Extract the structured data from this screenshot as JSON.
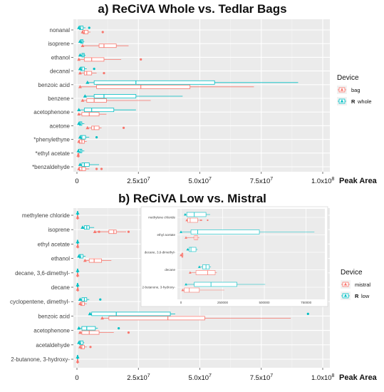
{
  "chart_data": [
    {
      "type": "box",
      "title": "a) ReCiVA Whole vs. Tedlar Bags",
      "xlabel": "Peak Area",
      "xlim": [
        0,
        100000000
      ],
      "xticks": [
        0,
        25000000,
        50000000,
        75000000,
        100000000
      ],
      "xtick_labels": [
        "0",
        "2.5x10",
        "5.0x10",
        "7.5x10",
        "1.0x10"
      ],
      "xtick_exponent": "7",
      "xtick_exponent_last": "8",
      "grid": true,
      "legend": {
        "title": "Device",
        "position": "right",
        "labels": [
          "bag",
          "whole"
        ],
        "markers": [
          "",
          "R"
        ]
      },
      "colors": {
        "first": "#F8766D",
        "second": "#00BFC4",
        "panel": "#EBEBEB"
      },
      "categories": [
        "nonanal",
        "isoprene",
        "ethanol",
        "decanal",
        "benzoic acid",
        "benzene",
        "acetophenone",
        "acetone",
        "*phenylethyne",
        "*ethyl acetate",
        "*benzaldehyde"
      ],
      "series": [
        {
          "name": "bag",
          "boxes": [
            {
              "min": 2000000,
              "q1": 2500000,
              "median": 3000000,
              "q3": 4500000,
              "max": 5500000,
              "outliers": [
                10500000
              ]
            },
            {
              "min": 2000000,
              "q1": 9000000,
              "median": 11000000,
              "q3": 16000000,
              "max": 21000000,
              "outliers": []
            },
            {
              "min": 500000,
              "q1": 3000000,
              "median": 6000000,
              "q3": 11000000,
              "max": 18000000,
              "outliers": [
                26000000
              ]
            },
            {
              "min": 1000000,
              "q1": 3000000,
              "median": 4000000,
              "q3": 6000000,
              "max": 8000000,
              "outliers": [
                11000000
              ]
            },
            {
              "min": 1000000,
              "q1": 8000000,
              "median": 26000000,
              "q3": 46000000,
              "max": 72000000,
              "outliers": []
            },
            {
              "min": 2000000,
              "q1": 4000000,
              "median": 7000000,
              "q3": 12000000,
              "max": 30000000,
              "outliers": []
            },
            {
              "min": 500000,
              "q1": 2000000,
              "median": 5000000,
              "q3": 9000000,
              "max": 12000000,
              "outliers": []
            },
            {
              "min": 4000000,
              "q1": 6000000,
              "median": 7000000,
              "q3": 9000000,
              "max": 10000000,
              "outliers": [
                19000000
              ]
            },
            {
              "min": 500000,
              "q1": 1000000,
              "median": 2000000,
              "q3": 3000000,
              "max": 4000000,
              "outliers": []
            },
            {
              "min": 200000,
              "q1": 300000,
              "median": 500000,
              "q3": 800000,
              "max": 1000000,
              "outliers": []
            },
            {
              "min": 500000,
              "q1": 1000000,
              "median": 2000000,
              "q3": 3500000,
              "max": 5000000,
              "outliers": [
                8000000,
                10000000
              ]
            }
          ]
        },
        {
          "name": "whole",
          "boxes": [
            {
              "min": 500000,
              "q1": 1000000,
              "median": 1500000,
              "q3": 2500000,
              "max": 3500000,
              "outliers": [
                5000000
              ]
            },
            {
              "min": 1000000,
              "q1": 1500000,
              "median": 2000000,
              "q3": 2500000,
              "max": 3000000,
              "outliers": []
            },
            {
              "min": 1000000,
              "q1": 2000000,
              "median": 2500000,
              "q3": 3000000,
              "max": 3500000,
              "outliers": []
            },
            {
              "min": 1000000,
              "q1": 1500000,
              "median": 2000000,
              "q3": 3000000,
              "max": 4000000,
              "outliers": [
                7000000
              ]
            },
            {
              "min": 4000000,
              "q1": 7000000,
              "median": 24000000,
              "q3": 56000000,
              "max": 90000000,
              "outliers": []
            },
            {
              "min": 3000000,
              "q1": 7000000,
              "median": 11000000,
              "q3": 24000000,
              "max": 43000000,
              "outliers": []
            },
            {
              "min": 500000,
              "q1": 3000000,
              "median": 6000000,
              "q3": 15000000,
              "max": 24000000,
              "outliers": []
            },
            {
              "min": 500000,
              "q1": 1000000,
              "median": 1500000,
              "q3": 2000000,
              "max": 3000000,
              "outliers": []
            },
            {
              "min": 1000000,
              "q1": 1500000,
              "median": 2000000,
              "q3": 3500000,
              "max": 5000000,
              "outliers": [
                8000000
              ]
            },
            {
              "min": 300000,
              "q1": 800000,
              "median": 1500000,
              "q3": 2000000,
              "max": 3000000,
              "outliers": []
            },
            {
              "min": 1000000,
              "q1": 2000000,
              "median": 3000000,
              "q3": 5000000,
              "max": 9000000,
              "outliers": []
            }
          ]
        }
      ]
    },
    {
      "type": "box",
      "title": "b) ReCiVA Low vs. Mistral",
      "xlabel": "Peak Area",
      "xlim": [
        0,
        100000000
      ],
      "xticks": [
        0,
        25000000,
        50000000,
        75000000,
        100000000
      ],
      "xtick_labels": [
        "0",
        "2.5x10",
        "5.0x10",
        "7.5x10",
        "1.0x10"
      ],
      "xtick_exponent": "7",
      "xtick_exponent_last": "8",
      "grid": true,
      "legend": {
        "title": "Device",
        "position": "right",
        "labels": [
          "mistral",
          "low"
        ],
        "markers": [
          "",
          "R"
        ]
      },
      "colors": {
        "first": "#F8766D",
        "second": "#00BFC4",
        "panel": "#EBEBEB"
      },
      "categories": [
        "methylene chloride",
        "isoprene",
        "ethyl acetate",
        "ethanol",
        "decane, 3,6-dimethyl-",
        "decane",
        "cyclopentene, dimethyl-",
        "benzoic acid",
        "acetophenone",
        "acetaldehyde",
        "2-butanone, 3-hydroxy-"
      ],
      "series": [
        {
          "name": "mistral",
          "boxes": [
            {
              "min": 0,
              "q1": 100000,
              "median": 200000,
              "q3": 300000,
              "max": 400000,
              "outliers": []
            },
            {
              "min": 7000000,
              "q1": 13000000,
              "median": 15000000,
              "q3": 16000000,
              "max": 20000000,
              "outliers": [
                9000000,
                21000000
              ]
            },
            {
              "min": 0,
              "q1": 200000,
              "median": 300000,
              "q3": 500000,
              "max": 600000,
              "outliers": []
            },
            {
              "min": 3000000,
              "q1": 5000000,
              "median": 7000000,
              "q3": 10000000,
              "max": 14000000,
              "outliers": []
            },
            {
              "min": 0,
              "q1": 100000,
              "median": 200000,
              "q3": 300000,
              "max": 400000,
              "outliers": []
            },
            {
              "min": 0,
              "q1": 200000,
              "median": 300000,
              "q3": 500000,
              "max": 700000,
              "outliers": []
            },
            {
              "min": 1000000,
              "q1": 1500000,
              "median": 2000000,
              "q3": 3000000,
              "max": 4000000,
              "outliers": []
            },
            {
              "min": 10000000,
              "q1": 13000000,
              "median": 37000000,
              "q3": 52000000,
              "max": 87000000,
              "outliers": []
            },
            {
              "min": 1000000,
              "q1": 2000000,
              "median": 5000000,
              "q3": 9000000,
              "max": 15000000,
              "outliers": [
                21000000
              ]
            },
            {
              "min": 1000000,
              "q1": 1500000,
              "median": 2000000,
              "q3": 3000000,
              "max": 4000000,
              "outliers": [
                5500000
              ]
            },
            {
              "min": 0,
              "q1": 100000,
              "median": 200000,
              "q3": 400000,
              "max": 600000,
              "outliers": []
            }
          ]
        },
        {
          "name": "low",
          "boxes": [
            {
              "min": 0,
              "q1": 100000,
              "median": 200000,
              "q3": 300000,
              "max": 500000,
              "outliers": []
            },
            {
              "min": 2000000,
              "q1": 3000000,
              "median": 4000000,
              "q3": 5000000,
              "max": 7000000,
              "outliers": []
            },
            {
              "min": 0,
              "q1": 100000,
              "median": 200000,
              "q3": 300000,
              "max": 400000,
              "outliers": []
            },
            {
              "min": 500000,
              "q1": 1000000,
              "median": 1500000,
              "q3": 2500000,
              "max": 3500000,
              "outliers": []
            },
            {
              "min": 0,
              "q1": 100000,
              "median": 200000,
              "q3": 300000,
              "max": 400000,
              "outliers": []
            },
            {
              "min": 0,
              "q1": 100000,
              "median": 200000,
              "q3": 300000,
              "max": 400000,
              "outliers": []
            },
            {
              "min": 1000000,
              "q1": 2000000,
              "median": 3000000,
              "q3": 4000000,
              "max": 5000000,
              "outliers": [
                9500000
              ]
            },
            {
              "min": 5000000,
              "q1": 6000000,
              "median": 16000000,
              "q3": 38000000,
              "max": 40000000,
              "outliers": [
                94000000
              ]
            },
            {
              "min": 500000,
              "q1": 2000000,
              "median": 4000000,
              "q3": 7500000,
              "max": 8500000,
              "outliers": [
                17000000
              ]
            },
            {
              "min": 500000,
              "q1": 1000000,
              "median": 1500000,
              "q3": 2500000,
              "max": 3000000,
              "outliers": []
            },
            {
              "min": 0,
              "q1": 100000,
              "median": 200000,
              "q3": 300000,
              "max": 400000,
              "outliers": []
            }
          ]
        }
      ],
      "inset": {
        "xlim": [
          0,
          850000
        ],
        "xticks": [
          0,
          250000,
          500000,
          750000
        ],
        "xtick_labels": [
          "0",
          "250000",
          "500000",
          "750000"
        ],
        "categories": [
          "methylene chloride",
          "ethyl acetate",
          "decane, 3,6-dimethyl-",
          "decane",
          "2-butanone, 3-hydroxy-"
        ],
        "series": [
          {
            "name": "mistral",
            "boxes": [
              {
                "min": 35000,
                "q1": 40000,
                "median": 55000,
                "q3": 100000,
                "max": 130000,
                "outliers": [
                  120000,
                  160000
                ]
              },
              {
                "min": 30000,
                "q1": 80000,
                "median": 90000,
                "q3": 100000,
                "max": 110000,
                "outliers": []
              },
              {
                "min": 0,
                "q1": 5000,
                "median": 8000,
                "q3": 12000,
                "max": 15000,
                "outliers": []
              },
              {
                "min": 55000,
                "q1": 90000,
                "median": 160000,
                "q3": 205000,
                "max": 215000,
                "outliers": []
              },
              {
                "min": 10000,
                "q1": 20000,
                "median": 50000,
                "q3": 110000,
                "max": 260000,
                "outliers": []
              }
            ]
          },
          {
            "name": "low",
            "boxes": [
              {
                "min": 25000,
                "q1": 35000,
                "median": 80000,
                "q3": 150000,
                "max": 175000,
                "outliers": []
              },
              {
                "min": 0,
                "q1": 60000,
                "median": 100000,
                "q3": 470000,
                "max": 800000,
                "outliers": []
              },
              {
                "min": 40000,
                "q1": 50000,
                "median": 60000,
                "q3": 90000,
                "max": 100000,
                "outliers": []
              },
              {
                "min": 110000,
                "q1": 130000,
                "median": 150000,
                "q3": 170000,
                "max": 180000,
                "outliers": []
              },
              {
                "min": 30000,
                "q1": 80000,
                "median": 180000,
                "q3": 335000,
                "max": 505000,
                "outliers": []
              }
            ]
          }
        ]
      }
    }
  ]
}
